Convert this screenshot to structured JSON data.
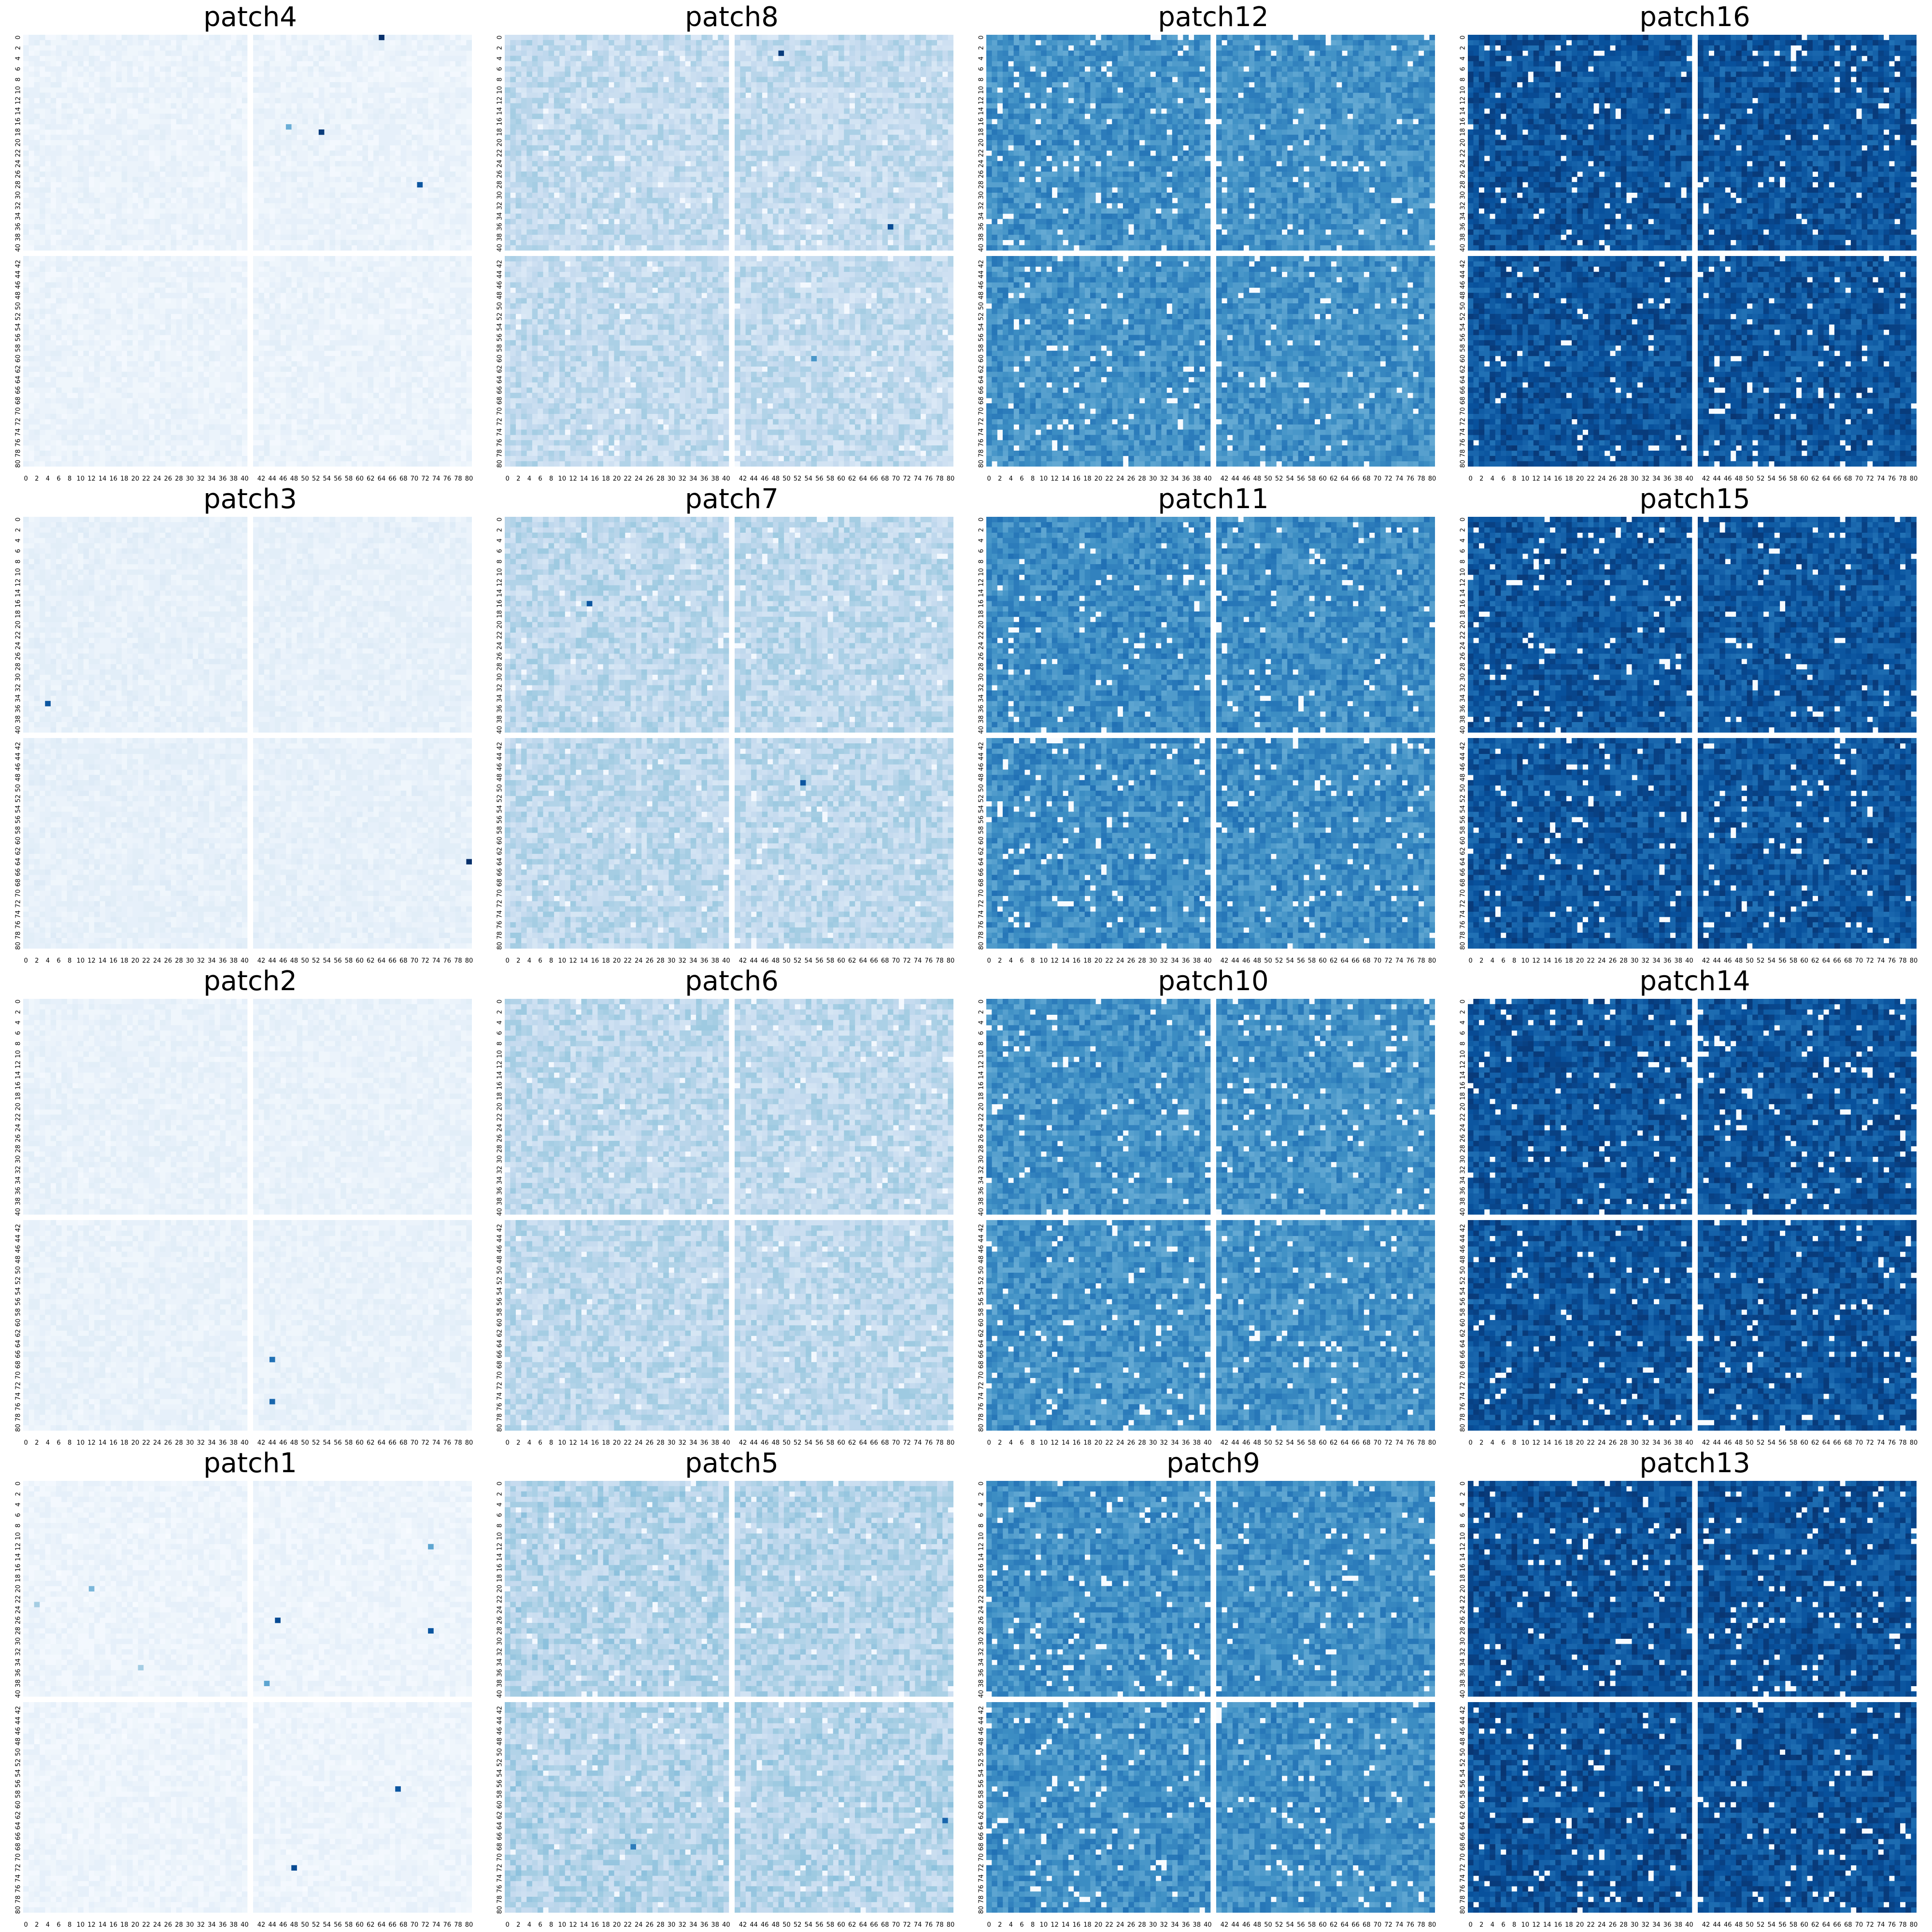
{
  "figure": {
    "layout": "4x4 grid of heatmaps",
    "colormap": "Blues"
  },
  "chart_data": {
    "type": "heatmap",
    "colormap": "Blues",
    "grid": false,
    "legend": "none",
    "matrix_size": [
      81,
      81
    ],
    "matrix_gaps_after_index": 40,
    "xticks": [
      "0",
      "2",
      "4",
      "6",
      "8",
      "10",
      "12",
      "14",
      "16",
      "18",
      "20",
      "22",
      "24",
      "26",
      "28",
      "30",
      "32",
      "34",
      "36",
      "38",
      "40",
      "42",
      "44",
      "46",
      "48",
      "50",
      "52",
      "54",
      "56",
      "58",
      "60",
      "62",
      "64",
      "66",
      "68",
      "70",
      "72",
      "74",
      "76",
      "78",
      "80"
    ],
    "yticks": [
      "0",
      "2",
      "4",
      "6",
      "8",
      "10",
      "12",
      "14",
      "16",
      "18",
      "20",
      "22",
      "24",
      "26",
      "28",
      "30",
      "32",
      "34",
      "36",
      "38",
      "40",
      "42",
      "44",
      "46",
      "48",
      "50",
      "52",
      "54",
      "56",
      "58",
      "60",
      "62",
      "64",
      "66",
      "68",
      "70",
      "72",
      "74",
      "76",
      "78",
      "80"
    ],
    "panels": [
      {
        "title": "patch4",
        "row": 0,
        "col": 0,
        "base": 0.06,
        "hot": [
          [
            0,
            64,
            1.0
          ],
          [
            17,
            47,
            0.5
          ],
          [
            18,
            53,
            0.95
          ],
          [
            28,
            71,
            0.85
          ]
        ]
      },
      {
        "title": "patch8",
        "row": 0,
        "col": 1,
        "base": 0.25,
        "hot": [
          [
            3,
            49,
            0.95
          ],
          [
            36,
            69,
            0.9
          ],
          [
            60,
            55,
            0.6
          ]
        ]
      },
      {
        "title": "patch12",
        "row": 0,
        "col": 2,
        "base": 0.62,
        "hot": []
      },
      {
        "title": "patch16",
        "row": 0,
        "col": 3,
        "base": 0.86,
        "hot": []
      },
      {
        "title": "patch3",
        "row": 1,
        "col": 0,
        "base": 0.08,
        "hot": [
          [
            35,
            4,
            0.85
          ],
          [
            64,
            80,
            1.0
          ]
        ]
      },
      {
        "title": "patch7",
        "row": 1,
        "col": 1,
        "base": 0.27,
        "hot": [
          [
            16,
            15,
            0.85
          ],
          [
            49,
            53,
            0.85
          ]
        ]
      },
      {
        "title": "patch11",
        "row": 1,
        "col": 2,
        "base": 0.64,
        "hot": []
      },
      {
        "title": "patch15",
        "row": 1,
        "col": 3,
        "base": 0.85,
        "hot": []
      },
      {
        "title": "patch2",
        "row": 2,
        "col": 0,
        "base": 0.07,
        "hot": [
          [
            67,
            44,
            0.75
          ],
          [
            75,
            44,
            0.8
          ]
        ]
      },
      {
        "title": "patch6",
        "row": 2,
        "col": 1,
        "base": 0.27,
        "hot": []
      },
      {
        "title": "patch10",
        "row": 2,
        "col": 2,
        "base": 0.62,
        "hot": []
      },
      {
        "title": "patch14",
        "row": 2,
        "col": 3,
        "base": 0.86,
        "hot": []
      },
      {
        "title": "patch1",
        "row": 3,
        "col": 0,
        "base": 0.05,
        "hot": [
          [
            12,
            73,
            0.55
          ],
          [
            20,
            12,
            0.45
          ],
          [
            23,
            2,
            0.35
          ],
          [
            26,
            45,
            0.9
          ],
          [
            28,
            73,
            0.85
          ],
          [
            35,
            21,
            0.35
          ],
          [
            38,
            43,
            0.55
          ],
          [
            57,
            67,
            0.85
          ],
          [
            72,
            48,
            0.9
          ]
        ]
      },
      {
        "title": "patch5",
        "row": 3,
        "col": 1,
        "base": 0.3,
        "hot": [
          [
            63,
            79,
            0.8
          ],
          [
            68,
            23,
            0.7
          ]
        ]
      },
      {
        "title": "patch9",
        "row": 3,
        "col": 2,
        "base": 0.63,
        "hot": []
      },
      {
        "title": "patch13",
        "row": 3,
        "col": 3,
        "base": 0.87,
        "hot": []
      }
    ]
  }
}
